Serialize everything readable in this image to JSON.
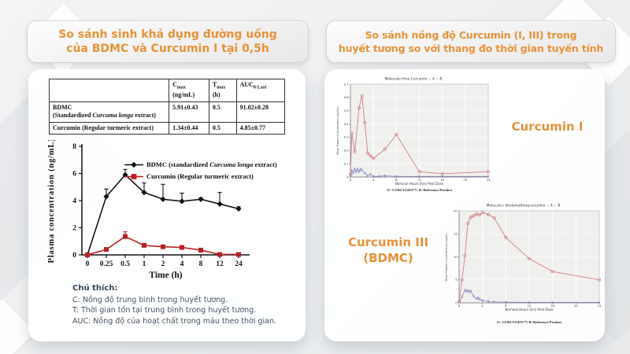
{
  "headers": {
    "accent_color": "#e8923a",
    "left": {
      "line1": "So sánh sinh khả dụng đường uống",
      "line2": "của BDMC và Curcumin I tại 0,5h"
    },
    "right": {
      "line1": "So sánh nồng độ Curcumin (I, III) trong",
      "line2": "huyết tương so với thang đo thời gian tuyến tính"
    }
  },
  "left_panel": {
    "table": {
      "columns": [
        "",
        "C{sub}max{/sub}\n(ng/mL)",
        "T{sub}max{/sub} (h)",
        "AUC{sub}0-Last{/sub}"
      ],
      "col_widths": [
        "54%",
        "16%",
        "10%",
        "20%"
      ],
      "rows": [
        [
          "BDMC\n(Standardized {i}Curcuma longa{/i} extract)",
          "5.91±0.43",
          "0.5",
          "91.02±0.28"
        ],
        [
          "Curcumin (Regular turmeric extract)",
          "1.34±0.44",
          "0.5",
          "4.85±0.77"
        ]
      ]
    },
    "notes": {
      "title": "Chú thích:",
      "lines": [
        "C: Nồng độ trung bình trong huyết tương.",
        "T: Thời gian tồn tại trung bình trong huyết tương.",
        "AUC: Nồng độ của hoạt chất trong máu theo thời gian."
      ]
    }
  },
  "right_panel": {
    "label_curcumin1": "Curcumin I",
    "label_curcumin3_line1": "Curcumin III",
    "label_curcumin3_line2": "(BDMC)"
  },
  "chart_data": [
    {
      "id": "pk-comparison",
      "type": "line",
      "title": "",
      "xlabel": "Time (h)",
      "ylabel": "Plasma concentration (ng/mL)",
      "categories": [
        "0",
        "0.25",
        "0.5",
        "1",
        "2",
        "4",
        "8",
        "12",
        "24"
      ],
      "ylim": [
        0,
        8
      ],
      "yticks": [
        0,
        2,
        4,
        6,
        8
      ],
      "ytick_labels": [
        "0",
        "2",
        "4",
        "6",
        "8"
      ],
      "grid": false,
      "legend_position": "inside-top-right",
      "series": [
        {
          "name": "BDMC (standardized {i}Curcuma longa{/i} extract)",
          "color": "#111111",
          "marker": "diamond",
          "values": [
            0,
            4.3,
            5.9,
            4.6,
            4.1,
            3.95,
            4.1,
            3.75,
            3.4
          ],
          "errors_up": [
            0,
            0.55,
            0.4,
            0.7,
            1.1,
            0.6,
            0.1,
            0.85,
            0.15
          ]
        },
        {
          "name": "Curcumin (Regular turmeric extract)",
          "color": "#b92025",
          "marker": "square",
          "values": [
            0,
            0.4,
            1.35,
            0.7,
            0.6,
            0.55,
            0.35,
            0.03,
            0.03
          ],
          "errors_up": [
            0,
            0,
            0.35,
            0,
            0,
            0,
            0,
            0,
            0
          ]
        }
      ]
    },
    {
      "id": "free-curcumin",
      "type": "line",
      "title": "Molecule=Free Curcumin",
      "legend_labels": [
        "A",
        "B"
      ],
      "xlabel": "Nominal Hours (hrs) Post Dose",
      "ylabel": "Mean Plasma Concentration (ng/mL)",
      "caption": "A= CURCUGEN™; B=Reference Product",
      "xlim": [
        0,
        24
      ],
      "xticks": [
        0,
        4,
        8,
        12,
        16,
        20,
        24
      ],
      "xtick_labels": [
        "0",
        "4",
        "8",
        "12",
        "16",
        "20",
        "24"
      ],
      "ylim": [
        0,
        0.7
      ],
      "yticks": [
        0,
        0.1,
        0.2,
        0.3,
        0.4,
        0.5,
        0.6,
        0.7
      ],
      "ytick_labels": [
        "0",
        "0.1",
        "0.2",
        "0.3",
        "0.4",
        "0.5",
        "0.6",
        "0.7"
      ],
      "grid": true,
      "series": [
        {
          "name": "A",
          "color": "#cd8184",
          "marker": "circle",
          "points": [
            [
              0,
              0.02
            ],
            [
              0.25,
              0.33
            ],
            [
              0.75,
              0.19
            ],
            [
              1.5,
              0.52
            ],
            [
              2,
              0.61
            ],
            [
              2.5,
              0.41
            ],
            [
              3,
              0.18
            ],
            [
              3.5,
              0.16
            ],
            [
              4,
              0.14
            ],
            [
              6,
              0.21
            ],
            [
              8,
              0.32
            ],
            [
              12,
              0.04
            ],
            [
              16,
              0.025
            ],
            [
              24,
              0.04
            ]
          ]
        },
        {
          "name": "B",
          "color": "#8080bb",
          "marker": "star",
          "points": [
            [
              0,
              0.01
            ],
            [
              0.25,
              0.05
            ],
            [
              0.5,
              0.03
            ],
            [
              0.75,
              0.06
            ],
            [
              1,
              0.04
            ],
            [
              1.25,
              0.06
            ],
            [
              1.5,
              0.04
            ],
            [
              1.75,
              0.06
            ],
            [
              2,
              0.05
            ],
            [
              2.5,
              0.03
            ],
            [
              3,
              0.01
            ],
            [
              3.5,
              0.02
            ],
            [
              4,
              0.005
            ],
            [
              5,
              0.005
            ],
            [
              6,
              0.01
            ],
            [
              8,
              0.005
            ],
            [
              12,
              0.005
            ],
            [
              16,
              0.005
            ],
            [
              24,
              0.005
            ]
          ]
        }
      ]
    },
    {
      "id": "bdmc-linear",
      "type": "line",
      "title": "Molecule= Bisdemethoxycurcumin",
      "legend_labels": [
        "A",
        "B"
      ],
      "xlabel": "Nominal Hours (hrs) Post Dose",
      "ylabel": "Mean Plasma Concentration (ng/mL)",
      "caption": "A= CURCUGEN™; B=Reference Product",
      "xlim": [
        0,
        24
      ],
      "xticks": [
        0,
        4,
        8,
        12,
        16,
        20,
        24
      ],
      "xtick_labels": [
        "0",
        "4",
        "8",
        "12",
        "16",
        "20",
        "24"
      ],
      "ylim": [
        0,
        20
      ],
      "yticks": [
        0,
        5,
        10,
        15,
        20
      ],
      "ytick_labels": [
        "0",
        "5",
        "10",
        "15",
        "20"
      ],
      "grid": true,
      "series": [
        {
          "name": "A",
          "color": "#cd8184",
          "marker": "circle",
          "points": [
            [
              0,
              0.3
            ],
            [
              0.5,
              5.0
            ],
            [
              1,
              10.3
            ],
            [
              1.5,
              17.3
            ],
            [
              2,
              18.6
            ],
            [
              2.5,
              18.9
            ],
            [
              3,
              19.3
            ],
            [
              3.5,
              19.1
            ],
            [
              4,
              19.6
            ],
            [
              5,
              19.2
            ],
            [
              6,
              18.5
            ],
            [
              8,
              14.2
            ],
            [
              12,
              9.6
            ],
            [
              16,
              6.8
            ],
            [
              24,
              5.0
            ]
          ]
        },
        {
          "name": "B",
          "color": "#8080bb",
          "marker": "star",
          "points": [
            [
              0,
              0.2
            ],
            [
              0.5,
              1.3
            ],
            [
              1,
              2.8
            ],
            [
              1.25,
              2.5
            ],
            [
              1.5,
              2.7
            ],
            [
              1.75,
              2.4
            ],
            [
              2,
              2.6
            ],
            [
              2.5,
              1.4
            ],
            [
              3,
              0.9
            ],
            [
              3.25,
              1.1
            ],
            [
              3.5,
              0.8
            ],
            [
              4,
              0.5
            ],
            [
              5,
              0.3
            ],
            [
              6,
              0.2
            ],
            [
              8,
              0.15
            ],
            [
              12,
              0.1
            ],
            [
              16,
              0.1
            ],
            [
              24,
              0.1
            ]
          ]
        }
      ]
    }
  ]
}
